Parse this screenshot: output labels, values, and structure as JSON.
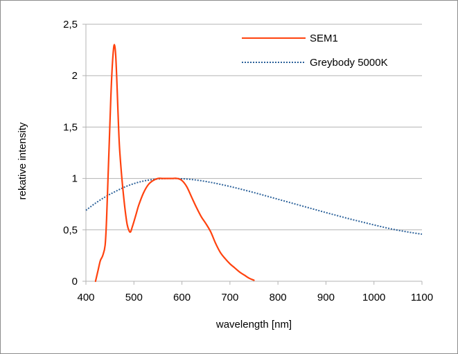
{
  "chart_data": {
    "type": "line",
    "title": "",
    "xlabel": "wavelength [nm]",
    "ylabel": "rekative intensity",
    "xlim": [
      400,
      1100
    ],
    "ylim": [
      0,
      2.5
    ],
    "x_ticks": [
      400,
      500,
      600,
      700,
      800,
      900,
      1000,
      1100
    ],
    "x_tick_labels": [
      "400",
      "500",
      "600",
      "700",
      "800",
      "900",
      "1000",
      "1100"
    ],
    "y_ticks": [
      0,
      0.5,
      1,
      1.5,
      2,
      2.5
    ],
    "y_tick_labels": [
      "0",
      "0,5",
      "1",
      "1,5",
      "2",
      "2,5"
    ],
    "grid": "horizontal",
    "legend_position": "top-right",
    "series": [
      {
        "name": "SEM1",
        "color": "#ff420e",
        "style": "solid",
        "x": [
          420,
          425,
          430,
          435,
          440,
          443,
          446,
          449,
          452,
          455,
          458,
          460,
          462,
          464,
          466,
          468,
          470,
          474,
          478,
          482,
          486,
          490,
          493,
          496,
          500,
          505,
          510,
          520,
          530,
          540,
          550,
          560,
          570,
          580,
          590,
          600,
          610,
          620,
          630,
          640,
          650,
          660,
          670,
          680,
          690,
          700,
          710,
          720,
          730,
          740,
          750
        ],
        "y": [
          0.0,
          0.1,
          0.2,
          0.25,
          0.35,
          0.6,
          1.0,
          1.4,
          1.8,
          2.1,
          2.28,
          2.29,
          2.2,
          2.0,
          1.75,
          1.5,
          1.3,
          1.05,
          0.85,
          0.68,
          0.55,
          0.49,
          0.48,
          0.52,
          0.58,
          0.66,
          0.74,
          0.86,
          0.94,
          0.98,
          1.0,
          1.0,
          1.0,
          1.0,
          1.0,
          0.98,
          0.92,
          0.82,
          0.72,
          0.63,
          0.56,
          0.48,
          0.37,
          0.28,
          0.22,
          0.17,
          0.13,
          0.09,
          0.06,
          0.03,
          0.01
        ]
      },
      {
        "name": "Greybody 5000K",
        "color": "#2a6099",
        "style": "dotted",
        "x": [
          400,
          420,
          440,
          460,
          480,
          500,
          520,
          540,
          560,
          580,
          600,
          620,
          640,
          660,
          680,
          700,
          720,
          740,
          760,
          780,
          800,
          820,
          840,
          860,
          880,
          900,
          920,
          940,
          960,
          980,
          1000,
          1020,
          1040,
          1060,
          1080,
          1100
        ],
        "y": [
          0.69,
          0.76,
          0.82,
          0.87,
          0.915,
          0.95,
          0.975,
          0.99,
          0.998,
          1.0,
          0.997,
          0.99,
          0.978,
          0.962,
          0.943,
          0.922,
          0.899,
          0.875,
          0.85,
          0.824,
          0.798,
          0.772,
          0.746,
          0.72,
          0.694,
          0.668,
          0.643,
          0.618,
          0.594,
          0.571,
          0.548,
          0.526,
          0.505,
          0.488,
          0.472,
          0.458
        ]
      }
    ]
  }
}
